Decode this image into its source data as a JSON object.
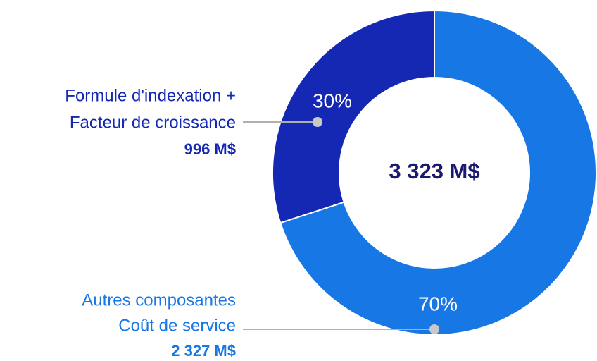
{
  "chart_data": {
    "type": "donut",
    "center_label": "3 323 M$",
    "categories": [
      [
        "Autres composantes",
        "Coût de service"
      ],
      [
        "Formule d'indexation +",
        "Facteur de croissance"
      ]
    ],
    "values": [
      70,
      30
    ],
    "value_labels": [
      "70%",
      "30%"
    ],
    "amounts": [
      "2 327 M$",
      "996 M$"
    ],
    "colors": [
      "#1777e5",
      "#1428b4"
    ],
    "center_color": "#1a1a6e"
  }
}
